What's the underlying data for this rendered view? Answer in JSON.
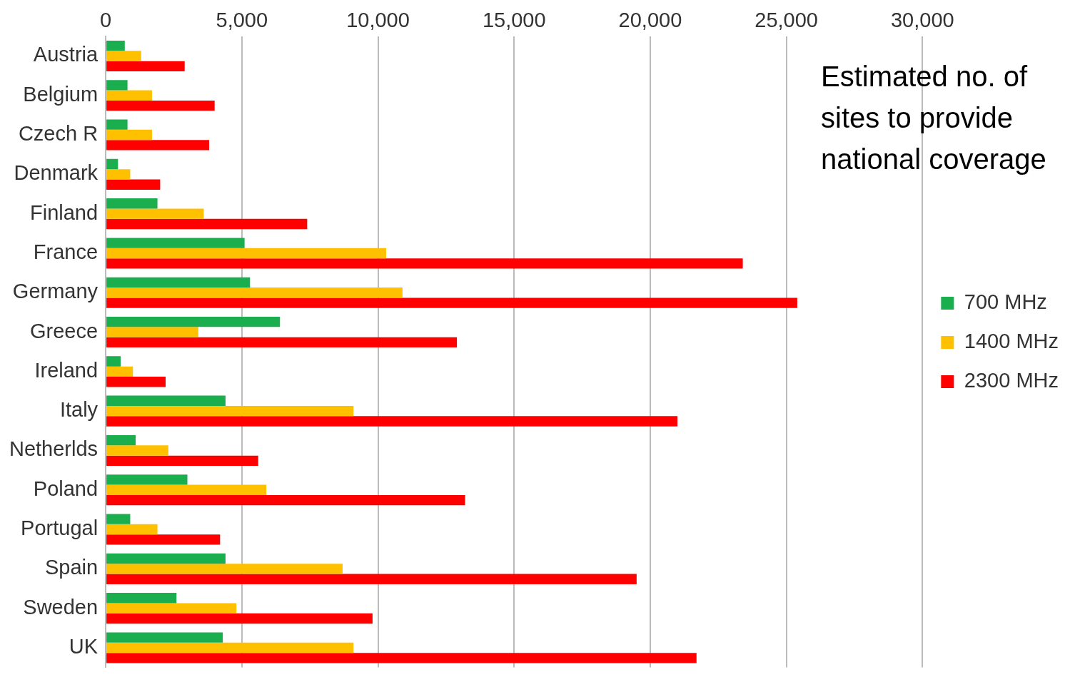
{
  "chart_data": {
    "type": "bar",
    "orientation": "horizontal",
    "title": "Estimated no. of sites to provide national coverage",
    "categories": [
      "Austria",
      "Belgium",
      "Czech R",
      "Denmark",
      "Finland",
      "France",
      "Germany",
      "Greece",
      "Ireland",
      "Italy",
      "Netherlds",
      "Poland",
      "Portugal",
      "Spain",
      "Sweden",
      "UK"
    ],
    "series": [
      {
        "name": "700 MHz",
        "color": "#1aae4f",
        "values": [
          700,
          800,
          800,
          450,
          1900,
          5100,
          5300,
          6400,
          550,
          4400,
          1100,
          3000,
          900,
          4400,
          2600,
          4300
        ]
      },
      {
        "name": "1400 MHz",
        "color": "#ffc000",
        "values": [
          1300,
          1700,
          1700,
          900,
          3600,
          10300,
          10900,
          3400,
          1000,
          9100,
          2300,
          5900,
          1900,
          8700,
          4800,
          9100
        ]
      },
      {
        "name": "2300 MHz",
        "color": "#ff0000",
        "values": [
          2900,
          4000,
          3800,
          2000,
          7400,
          23400,
          25400,
          12900,
          2200,
          21000,
          5600,
          13200,
          4200,
          19500,
          9800,
          21700
        ]
      }
    ],
    "xlim": [
      0,
      30000
    ],
    "xticks": [
      {
        "value": 0,
        "label": "0"
      },
      {
        "value": 5000,
        "label": "5,000"
      },
      {
        "value": 10000,
        "label": "10,000"
      },
      {
        "value": 15000,
        "label": "15,000"
      },
      {
        "value": 20000,
        "label": "20,000"
      },
      {
        "value": 25000,
        "label": "25,000"
      },
      {
        "value": 30000,
        "label": "30,000"
      }
    ],
    "grid": "x",
    "legend": "right"
  }
}
